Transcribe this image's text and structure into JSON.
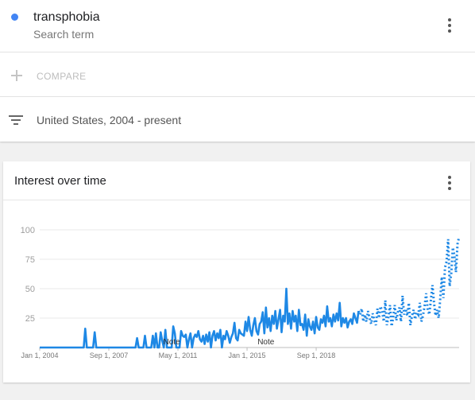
{
  "search_term": {
    "name": "transphobia",
    "subtitle": "Search term",
    "dot_color": "#4285f4"
  },
  "compare": {
    "label": "COMPARE",
    "icon": "plus-icon"
  },
  "filter": {
    "label": "United States, 2004 - present",
    "icon": "filter-icon"
  },
  "chart_card": {
    "title": "Interest over time",
    "menu_icon": "more-vert-icon"
  },
  "chart_data": {
    "type": "line",
    "title": "Interest over time",
    "line_color": "#1e88e5",
    "grid": true,
    "ylim": [
      0,
      100
    ],
    "y_ticks": [
      100,
      75,
      50,
      25
    ],
    "x_ticks": [
      {
        "t": 0,
        "label": "Jan 1, 2004"
      },
      {
        "t": 44,
        "label": "Sep 1, 2007"
      },
      {
        "t": 88,
        "label": "May 1, 2011"
      },
      {
        "t": 132,
        "label": "Jan 1, 2015"
      },
      {
        "t": 176,
        "label": "Sep 1, 2018"
      }
    ],
    "notes": [
      {
        "t": 84,
        "label": "Note"
      },
      {
        "t": 144,
        "label": "Note"
      }
    ],
    "partial_from_index": 203,
    "series": [
      {
        "values": [
          0,
          0,
          0,
          0,
          0,
          0,
          0,
          0,
          0,
          0,
          0,
          0,
          0,
          0,
          0,
          0,
          0,
          0,
          0,
          0,
          0,
          0,
          0,
          0,
          0,
          0,
          0,
          0,
          0,
          16,
          0,
          0,
          0,
          0,
          0,
          13,
          0,
          0,
          0,
          0,
          0,
          0,
          0,
          0,
          0,
          0,
          0,
          0,
          0,
          0,
          0,
          0,
          0,
          0,
          0,
          0,
          0,
          0,
          0,
          0,
          0,
          0,
          8,
          0,
          0,
          0,
          0,
          10,
          0,
          0,
          0,
          0,
          10,
          0,
          12,
          0,
          0,
          13,
          6,
          0,
          15,
          0,
          0,
          0,
          0,
          18,
          12,
          0,
          0,
          0,
          14,
          10,
          9,
          11,
          0,
          7,
          12,
          0,
          8,
          11,
          9,
          14,
          7,
          5,
          10,
          3,
          11,
          5,
          13,
          0,
          10,
          14,
          6,
          12,
          8,
          15,
          0,
          10,
          7,
          14,
          10,
          4,
          9,
          12,
          21,
          8,
          6,
          15,
          12,
          11,
          10,
          22,
          14,
          26,
          15,
          10,
          19,
          25,
          14,
          11,
          20,
          22,
          30,
          12,
          34,
          17,
          25,
          14,
          27,
          20,
          31,
          16,
          24,
          32,
          13,
          27,
          22,
          50,
          20,
          29,
          16,
          31,
          22,
          27,
          14,
          32,
          19,
          20,
          15,
          28,
          10,
          24,
          18,
          15,
          22,
          12,
          26,
          17,
          15,
          24,
          21,
          27,
          18,
          35,
          22,
          25,
          18,
          28,
          22,
          29,
          23,
          38,
          18,
          25,
          21,
          25,
          17,
          22,
          24,
          20,
          29,
          25,
          21,
          31,
          28,
          33,
          22,
          28,
          22,
          31,
          25,
          20,
          29,
          23,
          19,
          33,
          25,
          35,
          31,
          22,
          40,
          19,
          26,
          36,
          18,
          25,
          36,
          23,
          30,
          34,
          22,
          44,
          28,
          33,
          27,
          38,
          19,
          27,
          32,
          24,
          30,
          28,
          38,
          22,
          27,
          35,
          46,
          33,
          28,
          40,
          53,
          38,
          27,
          32,
          25,
          42,
          60,
          42,
          68,
          73,
          92,
          52,
          63,
          85,
          78,
          64,
          88,
          94
        ]
      }
    ]
  }
}
